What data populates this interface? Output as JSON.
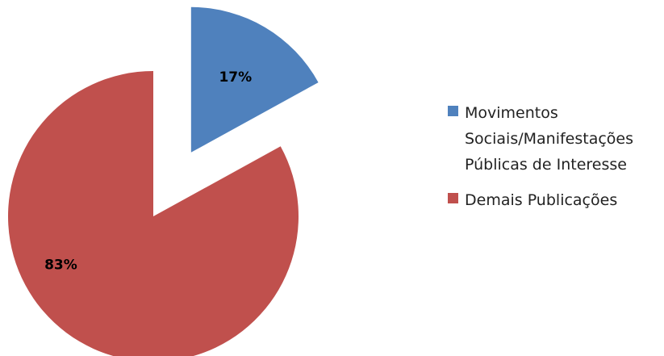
{
  "chart_data": {
    "type": "pie",
    "categories": [
      "Movimentos Sociais/Manifestações Públicas de Interesse",
      "Demais Publicações"
    ],
    "values": [
      17,
      83
    ],
    "value_labels": [
      "17%",
      "83%"
    ],
    "colors": [
      "#4f81bd",
      "#c0504d"
    ],
    "legend": "right"
  }
}
